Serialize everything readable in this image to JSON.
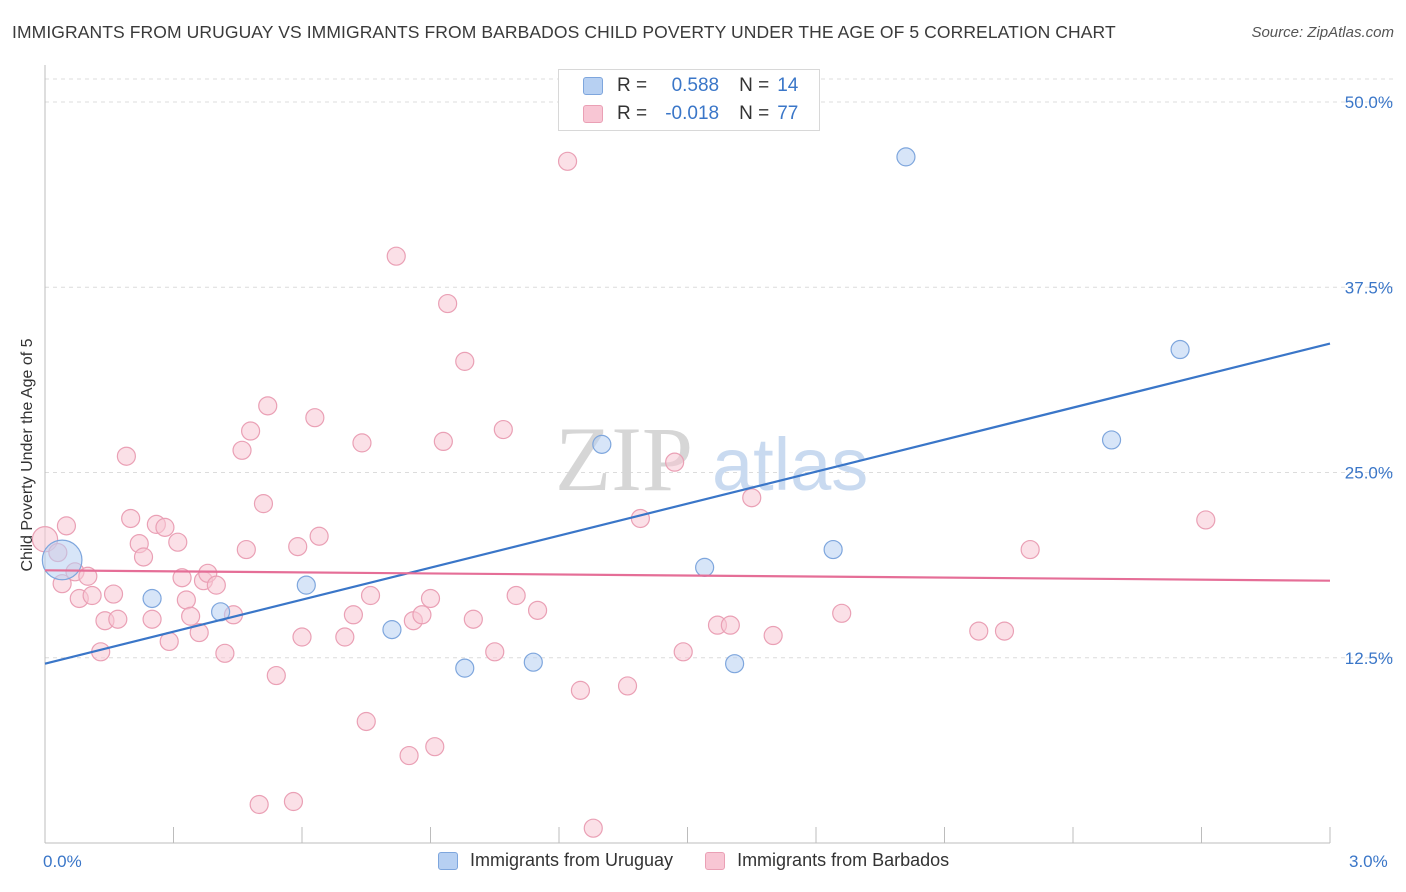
{
  "title": "IMMIGRANTS FROM URUGUAY VS IMMIGRANTS FROM BARBADOS CHILD POVERTY UNDER THE AGE OF 5 CORRELATION CHART",
  "source": "Source: ZipAtlas.com",
  "watermark": {
    "zip": "ZIP",
    "atlas": "atlas"
  },
  "legend": {
    "r_label": "R =",
    "n_label": "N =",
    "rows": [
      {
        "r": "0.588",
        "n": "14",
        "fill": "#b7d0f2",
        "stroke": "#7ea6dd"
      },
      {
        "r": "-0.018",
        "n": "77",
        "fill": "#f8c6d4",
        "stroke": "#eaa0b5"
      }
    ]
  },
  "chart_data": {
    "type": "scatter",
    "ylabel": "Child Poverty Under the Age of 5",
    "xlim": [
      0,
      3.0
    ],
    "ylim": [
      0,
      52.5
    ],
    "x_tick_labels": [
      "0.0%",
      "3.0%"
    ],
    "y_ticks": [
      12.5,
      25.0,
      37.5,
      50.0
    ],
    "y_tick_labels": [
      "12.5%",
      "25.0%",
      "37.5%",
      "50.0%"
    ],
    "grid": true,
    "series": [
      {
        "name": "Immigrants from Uruguay",
        "color": "#3a76c8",
        "point_fill": "#b7d0f2",
        "point_stroke": "#7ea6dd",
        "trend": {
          "x": [
            0.0,
            3.0
          ],
          "y": [
            12.1,
            33.7
          ]
        },
        "points": [
          [
            0.04,
            19.1,
            22
          ],
          [
            0.25,
            16.5,
            10
          ],
          [
            0.41,
            15.6,
            10
          ],
          [
            0.61,
            17.4,
            10
          ],
          [
            0.81,
            14.4,
            10
          ],
          [
            0.98,
            11.8,
            10
          ],
          [
            1.14,
            12.2,
            10
          ],
          [
            1.3,
            26.9,
            10
          ],
          [
            1.54,
            18.6,
            10
          ],
          [
            1.61,
            12.1,
            10
          ],
          [
            1.84,
            19.8,
            10
          ],
          [
            2.01,
            46.3,
            10
          ],
          [
            2.49,
            27.2,
            10
          ],
          [
            2.65,
            33.3,
            10
          ]
        ]
      },
      {
        "name": "Immigrants from Barbados",
        "color": "#e56e97",
        "point_fill": "#f8c6d4",
        "point_stroke": "#eaa0b5",
        "trend": {
          "x": [
            0.0,
            3.0
          ],
          "y": [
            18.4,
            17.7
          ]
        },
        "points": [
          [
            0.0,
            20.5,
            14
          ],
          [
            0.03,
            19.6,
            10
          ],
          [
            0.04,
            17.5,
            10
          ],
          [
            0.05,
            21.4,
            10
          ],
          [
            0.07,
            18.3,
            10
          ],
          [
            0.08,
            16.5,
            10
          ],
          [
            0.1,
            18.0,
            10
          ],
          [
            0.11,
            16.7,
            10
          ],
          [
            0.13,
            12.9,
            10
          ],
          [
            0.14,
            15.0,
            10
          ],
          [
            0.16,
            16.8,
            10
          ],
          [
            0.17,
            15.1,
            10
          ],
          [
            0.19,
            26.1,
            10
          ],
          [
            0.2,
            21.9,
            10
          ],
          [
            0.22,
            20.2,
            10
          ],
          [
            0.23,
            19.3,
            10
          ],
          [
            0.25,
            15.1,
            10
          ],
          [
            0.26,
            21.5,
            10
          ],
          [
            0.28,
            21.3,
            10
          ],
          [
            0.29,
            13.6,
            10
          ],
          [
            0.31,
            20.3,
            10
          ],
          [
            0.32,
            17.9,
            10
          ],
          [
            0.33,
            16.4,
            10
          ],
          [
            0.34,
            15.3,
            10
          ],
          [
            0.36,
            14.2,
            10
          ],
          [
            0.37,
            17.7,
            10
          ],
          [
            0.38,
            18.2,
            10
          ],
          [
            0.4,
            17.4,
            10
          ],
          [
            0.42,
            12.8,
            10
          ],
          [
            0.44,
            15.4,
            10
          ],
          [
            0.46,
            26.5,
            10
          ],
          [
            0.47,
            19.8,
            10
          ],
          [
            0.48,
            27.8,
            10
          ],
          [
            0.5,
            2.6,
            10
          ],
          [
            0.51,
            22.9,
            10
          ],
          [
            0.52,
            29.5,
            10
          ],
          [
            0.54,
            11.3,
            10
          ],
          [
            0.58,
            2.8,
            10
          ],
          [
            0.59,
            20.0,
            10
          ],
          [
            0.6,
            13.9,
            10
          ],
          [
            0.63,
            28.7,
            10
          ],
          [
            0.64,
            20.7,
            10
          ],
          [
            0.7,
            13.9,
            10
          ],
          [
            0.72,
            15.4,
            10
          ],
          [
            0.74,
            27.0,
            10
          ],
          [
            0.75,
            8.2,
            10
          ],
          [
            0.76,
            16.7,
            10
          ],
          [
            0.82,
            39.6,
            10
          ],
          [
            0.85,
            5.9,
            10
          ],
          [
            0.86,
            15.0,
            10
          ],
          [
            0.88,
            15.4,
            10
          ],
          [
            0.9,
            16.5,
            10
          ],
          [
            0.91,
            6.5,
            10
          ],
          [
            0.93,
            27.1,
            10
          ],
          [
            0.94,
            36.4,
            10
          ],
          [
            0.98,
            32.5,
            10
          ],
          [
            1.0,
            15.1,
            10
          ],
          [
            1.05,
            12.9,
            10
          ],
          [
            1.07,
            27.9,
            10
          ],
          [
            1.1,
            16.7,
            10
          ],
          [
            1.15,
            15.7,
            10
          ],
          [
            1.22,
            46.0,
            10
          ],
          [
            1.25,
            10.3,
            10
          ],
          [
            1.28,
            1.0,
            10
          ],
          [
            1.36,
            10.6,
            10
          ],
          [
            1.39,
            21.9,
            10
          ],
          [
            1.47,
            25.7,
            10
          ],
          [
            1.49,
            12.9,
            10
          ],
          [
            1.57,
            14.7,
            10
          ],
          [
            1.6,
            14.7,
            10
          ],
          [
            1.65,
            23.3,
            10
          ],
          [
            1.7,
            14.0,
            10
          ],
          [
            1.86,
            15.5,
            10
          ],
          [
            2.18,
            14.3,
            10
          ],
          [
            2.24,
            14.3,
            10
          ],
          [
            2.3,
            19.8,
            10
          ],
          [
            2.71,
            21.8,
            10
          ]
        ]
      }
    ]
  }
}
